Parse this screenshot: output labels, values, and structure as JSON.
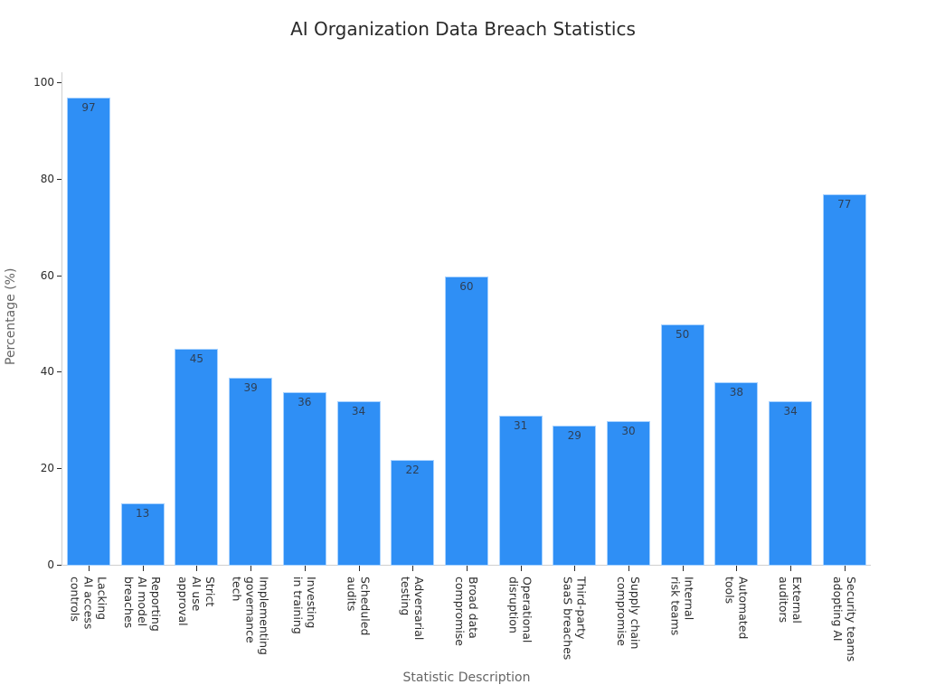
{
  "chart_data": {
    "type": "bar",
    "title": "AI Organization Data Breach Statistics",
    "xlabel": "Statistic Description",
    "ylabel": "Percentage (%)",
    "ylim": [
      0,
      100
    ],
    "yticks": [
      0,
      20,
      40,
      60,
      80,
      100
    ],
    "grid": false,
    "legend": null,
    "bar_color": "#2f8ff5",
    "categories": [
      "Lacking AI access controls",
      "Reporting AI model breaches",
      "Strict AI use approval",
      "Implementing governance tech",
      "Investing in training",
      "Scheduled audits",
      "Adversarial testing",
      "Broad data compromise",
      "Operational disruption",
      "Third-party SaaS breaches",
      "Supply chain compromise",
      "Internal risk teams",
      "Automated tools",
      "External auditors",
      "Security teams adopting AI"
    ],
    "category_lines": [
      "Lacking\nAI access\ncontrols",
      "Reporting\nAI model\nbreaches",
      "Strict\nAI use\napproval",
      "Implementing\ngovernance\ntech",
      "Investing\nin training",
      "Scheduled\naudits",
      "Adversarial\ntesting",
      "Broad data\ncompromise",
      "Operational\ndisruption",
      "Third-party\nSaaS breaches",
      "Supply chain\ncompromise",
      "Internal\nrisk teams",
      "Automated\ntools",
      "External\nauditors",
      "Security teams\nadopting AI"
    ],
    "values": [
      97,
      13,
      45,
      39,
      36,
      34,
      22,
      60,
      31,
      29,
      30,
      50,
      38,
      34,
      77
    ]
  }
}
